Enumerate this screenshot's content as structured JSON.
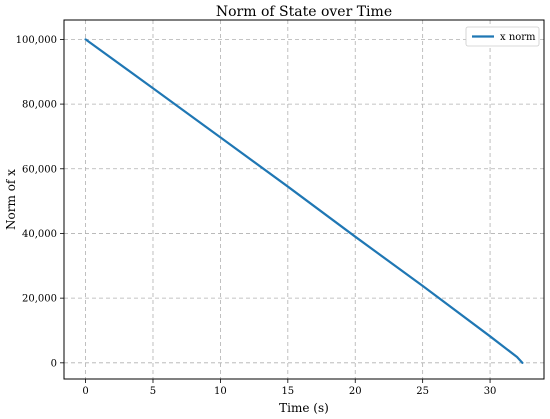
{
  "chart_data": {
    "type": "line",
    "title": "Norm of State over Time",
    "xlabel": "Time (s)",
    "ylabel": "Norm of x",
    "xlim": [
      -1.6,
      34.0
    ],
    "ylim": [
      -5000,
      106000
    ],
    "xticks": [
      0,
      5,
      10,
      15,
      20,
      25,
      30
    ],
    "xtick_labels": [
      "0",
      "5",
      "10",
      "15",
      "20",
      "25",
      "30"
    ],
    "yticks": [
      0,
      20000,
      40000,
      60000,
      80000,
      100000
    ],
    "ytick_labels": [
      "0",
      "20,000",
      "40,000",
      "60,000",
      "80,000",
      "100,000"
    ],
    "grid": true,
    "legend_position": "top-right",
    "series": [
      {
        "name": "x norm",
        "color": "#1f77b4",
        "x": [
          0,
          5,
          10,
          15,
          20,
          25,
          30,
          32.0,
          32.4
        ],
        "y": [
          100000,
          84900,
          69700,
          54500,
          39000,
          23800,
          8200,
          1800,
          0
        ]
      }
    ]
  }
}
